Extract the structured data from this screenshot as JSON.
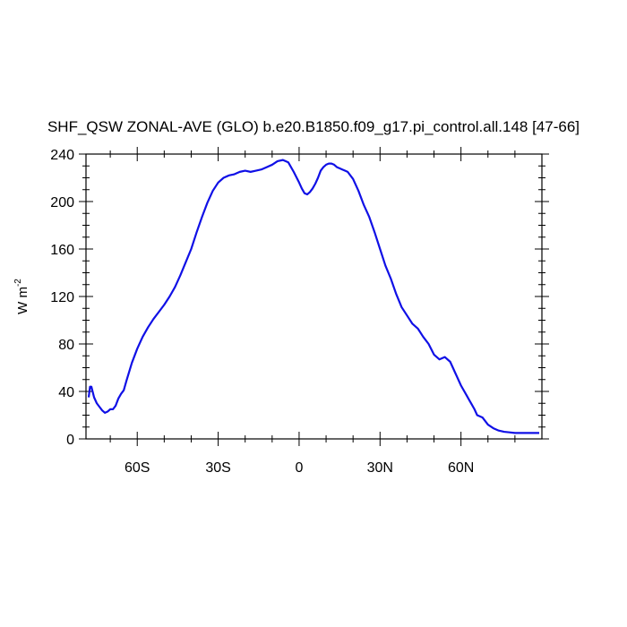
{
  "chart_data": {
    "type": "line",
    "title": "SHF_QSW ZONAL-AVE (GLO) b.e20.B1850.f09_g17.pi_control.all.148 [47-66]",
    "ylabel": {
      "base": "W m",
      "sup": "-2"
    },
    "xlim": [
      -79,
      90
    ],
    "ylim": [
      0,
      240
    ],
    "x_ticks": [
      {
        "value": -60,
        "label": "60S"
      },
      {
        "value": -30,
        "label": "30S"
      },
      {
        "value": 0,
        "label": "0"
      },
      {
        "value": 30,
        "label": "30N"
      },
      {
        "value": 60,
        "label": "60N"
      }
    ],
    "y_ticks": [
      {
        "value": 0,
        "label": "0"
      },
      {
        "value": 40,
        "label": "40"
      },
      {
        "value": 80,
        "label": "80"
      },
      {
        "value": 120,
        "label": "120"
      },
      {
        "value": 160,
        "label": "160"
      },
      {
        "value": 200,
        "label": "200"
      },
      {
        "value": 240,
        "label": "240"
      }
    ],
    "line_color": "#1010e6",
    "series": [
      {
        "x": [
          -78,
          -77.5,
          -77,
          -76,
          -75,
          -74,
          -73,
          -72,
          -71,
          -70,
          -69,
          -68,
          -67,
          -66,
          -65,
          -64,
          -62,
          -60,
          -58,
          -56,
          -54,
          -52,
          -50,
          -48,
          -46,
          -44,
          -42,
          -40,
          -38,
          -36,
          -34,
          -32,
          -30,
          -28,
          -26,
          -24,
          -22,
          -20,
          -18,
          -16,
          -14,
          -12,
          -10,
          -8,
          -6,
          -4,
          -2,
          0,
          1,
          2,
          3,
          4,
          5,
          6,
          7,
          8,
          9,
          10,
          11,
          12,
          13,
          14,
          15,
          16,
          17,
          18,
          20,
          22,
          24,
          26,
          28,
          30,
          32,
          34,
          36,
          38,
          40,
          42,
          44,
          46,
          48,
          50,
          52,
          54,
          56,
          58,
          60,
          62,
          63,
          64,
          65,
          66,
          68,
          70,
          72,
          74,
          76,
          78,
          80,
          82,
          85,
          89
        ],
        "y": [
          35,
          44,
          44,
          35,
          30,
          27,
          24,
          22,
          23,
          25,
          25,
          28,
          34,
          38,
          41,
          49,
          64,
          76,
          86,
          94,
          101,
          107,
          113,
          120,
          128,
          138,
          149,
          160,
          174,
          187,
          199,
          209,
          216,
          220,
          222,
          223,
          225,
          226,
          225,
          226,
          227,
          229,
          231,
          234,
          235,
          233,
          225,
          216,
          211,
          207,
          206,
          208,
          211,
          215,
          220,
          226,
          229,
          231,
          232,
          232,
          231,
          229,
          228,
          227,
          226,
          225,
          219,
          209,
          197,
          187,
          174,
          160,
          146,
          135,
          122,
          111,
          104,
          97,
          93,
          86,
          80,
          71,
          67,
          69,
          65,
          55,
          45,
          37,
          33,
          29,
          25,
          20,
          18,
          12,
          9,
          7,
          6,
          5.5,
          5,
          5,
          5,
          5
        ]
      }
    ]
  }
}
